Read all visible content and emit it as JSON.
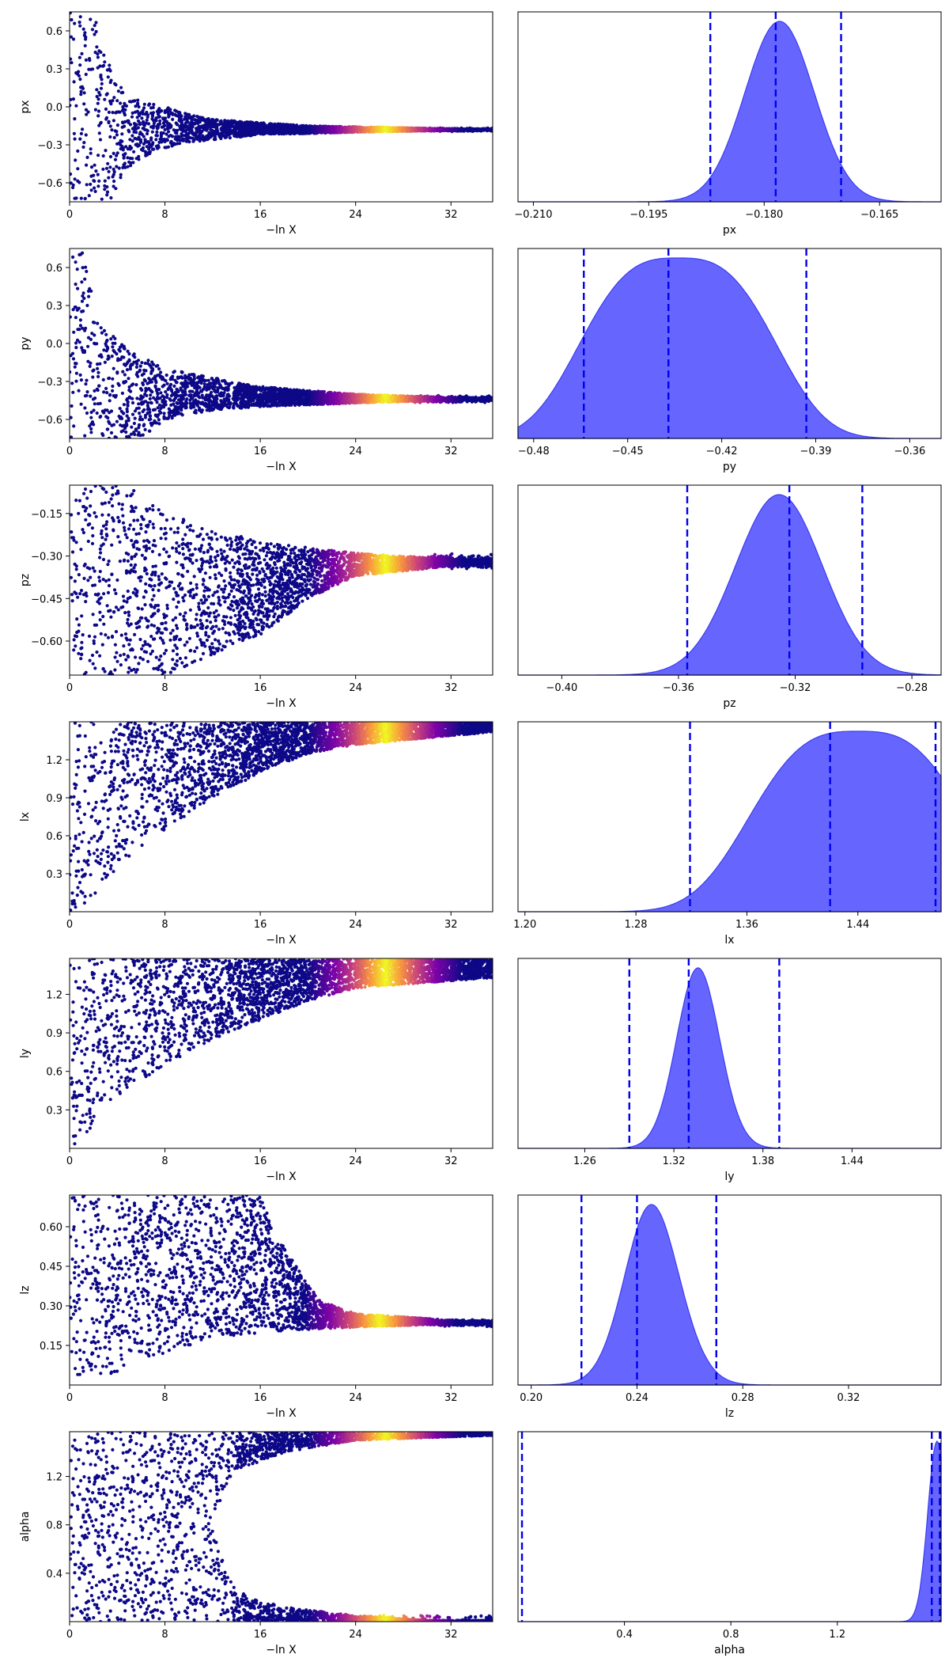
{
  "figure": {
    "layout": "7 rows x 2 columns: trace plots (left) and marginal posterior densities (right)"
  },
  "colors": {
    "points_low": "#0d0887",
    "points_mid": "#cc4778",
    "points_high": "#f0f921",
    "kde_fill": "#5a5aff",
    "kde_line": "#3b3bf0",
    "quantile_line": "#0000ee"
  },
  "chart_data": [
    {
      "type": "scatter",
      "param": "px",
      "xlabel": "−ln X",
      "ylabel": "px",
      "xlim": [
        0,
        35.5
      ],
      "ylim": [
        -0.75,
        0.75
      ],
      "xticks": [
        0,
        8,
        16,
        24,
        32
      ],
      "xtick_labels": [
        "0",
        "8",
        "16",
        "24",
        "32"
      ],
      "yticks": [
        0.6,
        0.3,
        0.0,
        -0.3,
        -0.6
      ],
      "ytick_labels": [
        "0.6",
        "0.3",
        "0.0",
        "−0.3",
        "−0.6"
      ],
      "spread_start": 0.75,
      "converge_value": -0.18,
      "spread_end": 0.005,
      "upper_curve": [
        [
          0,
          0.75
        ],
        [
          2,
          0.75
        ],
        [
          3,
          0.42
        ],
        [
          4,
          0.2
        ],
        [
          5,
          0.07
        ],
        [
          8,
          0.0
        ],
        [
          12,
          -0.1
        ],
        [
          20,
          -0.15
        ],
        [
          35.5,
          -0.18
        ]
      ],
      "lower_curve": [
        [
          0,
          -0.75
        ],
        [
          3.5,
          -0.75
        ],
        [
          5,
          -0.5
        ],
        [
          7,
          -0.35
        ],
        [
          10,
          -0.28
        ],
        [
          16,
          -0.22
        ],
        [
          24,
          -0.2
        ],
        [
          35.5,
          -0.18
        ]
      ],
      "color_peak_x": 26.5
    },
    {
      "type": "kde",
      "param": "px",
      "xlabel": "px",
      "xlim": [
        -0.212,
        -0.157
      ],
      "xticks": [
        -0.21,
        -0.195,
        -0.18,
        -0.165
      ],
      "xtick_labels": [
        "−0.210",
        "−0.195",
        "−0.180",
        "−0.165"
      ],
      "mean": -0.178,
      "std": 0.0045,
      "skew": 0,
      "quantiles": [
        -0.187,
        -0.1785,
        -0.17
      ]
    },
    {
      "type": "scatter",
      "param": "py",
      "xlabel": "−ln X",
      "ylabel": "py",
      "xlim": [
        0,
        35.5
      ],
      "ylim": [
        -0.75,
        0.75
      ],
      "xticks": [
        0,
        8,
        16,
        24,
        32
      ],
      "xtick_labels": [
        "0",
        "8",
        "16",
        "24",
        "32"
      ],
      "yticks": [
        0.6,
        0.3,
        0.0,
        -0.3,
        -0.6
      ],
      "ytick_labels": [
        "0.6",
        "0.3",
        "0.0",
        "−0.3",
        "−0.6"
      ],
      "converge_value": -0.44,
      "spread_end": 0.01,
      "upper_curve": [
        [
          0,
          0.75
        ],
        [
          1,
          0.75
        ],
        [
          2,
          0.35
        ],
        [
          3,
          0.12
        ],
        [
          5,
          -0.05
        ],
        [
          8,
          -0.2
        ],
        [
          16,
          -0.34
        ],
        [
          24,
          -0.4
        ],
        [
          35.5,
          -0.44
        ]
      ],
      "lower_curve": [
        [
          0,
          -0.75
        ],
        [
          6,
          -0.75
        ],
        [
          8,
          -0.6
        ],
        [
          12,
          -0.53
        ],
        [
          16,
          -0.5
        ],
        [
          24,
          -0.47
        ],
        [
          35.5,
          -0.44
        ]
      ],
      "color_peak_x": 26.5
    },
    {
      "type": "kde",
      "param": "py",
      "xlabel": "py",
      "xlim": [
        -0.485,
        -0.35
      ],
      "xticks": [
        -0.48,
        -0.45,
        -0.42,
        -0.39,
        -0.36
      ],
      "xtick_labels": [
        "−0.48",
        "−0.45",
        "−0.42",
        "−0.39",
        "−0.36"
      ],
      "mean": -0.434,
      "std": 0.018,
      "skew": 0,
      "flat_top": true,
      "quantiles": [
        -0.464,
        -0.437,
        -0.393
      ]
    },
    {
      "type": "scatter",
      "param": "pz",
      "xlabel": "−ln X",
      "ylabel": "pz",
      "xlim": [
        0,
        35.5
      ],
      "ylim": [
        -0.72,
        -0.05
      ],
      "xticks": [
        0,
        8,
        16,
        24,
        32
      ],
      "xtick_labels": [
        "0",
        "8",
        "16",
        "24",
        "32"
      ],
      "yticks": [
        -0.15,
        -0.3,
        -0.45,
        -0.6
      ],
      "ytick_labels": [
        "−0.15",
        "−0.30",
        "−0.45",
        "−0.60"
      ],
      "converge_value": -0.32,
      "spread_end": 0.01,
      "upper_curve": [
        [
          0,
          -0.05
        ],
        [
          5,
          -0.05
        ],
        [
          6,
          -0.1
        ],
        [
          10,
          -0.18
        ],
        [
          16,
          -0.25
        ],
        [
          24,
          -0.29
        ],
        [
          35.5,
          -0.32
        ]
      ],
      "lower_curve": [
        [
          0,
          -0.72
        ],
        [
          8,
          -0.72
        ],
        [
          12,
          -0.65
        ],
        [
          16,
          -0.58
        ],
        [
          20,
          -0.45
        ],
        [
          24,
          -0.37
        ],
        [
          35.5,
          -0.32
        ]
      ],
      "color_peak_x": 26.5
    },
    {
      "type": "kde",
      "param": "pz",
      "xlabel": "pz",
      "xlim": [
        -0.415,
        -0.27
      ],
      "xticks": [
        -0.4,
        -0.36,
        -0.32,
        -0.28
      ],
      "xtick_labels": [
        "−0.40",
        "−0.36",
        "−0.32",
        "−0.28"
      ],
      "mean": -0.32,
      "std": 0.016,
      "skew": -0.5,
      "quantiles": [
        -0.357,
        -0.322,
        -0.297
      ]
    },
    {
      "type": "scatter",
      "param": "lx",
      "xlabel": "−ln X",
      "ylabel": "lx",
      "xlim": [
        0,
        35.5
      ],
      "ylim": [
        0,
        1.5
      ],
      "xticks": [
        0,
        8,
        16,
        24,
        32
      ],
      "xtick_labels": [
        "0",
        "8",
        "16",
        "24",
        "32"
      ],
      "yticks": [
        1.2,
        0.9,
        0.6,
        0.3
      ],
      "ytick_labels": [
        "1.2",
        "0.9",
        "0.6",
        "0.3"
      ],
      "converge_value": 1.44,
      "spread_end": 0.02,
      "upper_curve": [
        [
          0,
          1.5
        ],
        [
          35.5,
          1.5
        ]
      ],
      "lower_curve": [
        [
          0,
          0.0
        ],
        [
          2,
          0.1
        ],
        [
          4,
          0.35
        ],
        [
          8,
          0.65
        ],
        [
          12,
          0.9
        ],
        [
          16,
          1.1
        ],
        [
          20,
          1.25
        ],
        [
          24,
          1.32
        ],
        [
          35.5,
          1.42
        ]
      ],
      "color_peak_x": 26.5
    },
    {
      "type": "kde",
      "param": "lx",
      "xlabel": "lx",
      "xlim": [
        1.195,
        1.5
      ],
      "xticks": [
        1.2,
        1.28,
        1.36,
        1.44
      ],
      "xtick_labels": [
        "1.20",
        "1.28",
        "1.36",
        "1.44"
      ],
      "mean": 1.44,
      "std": 0.045,
      "skew": -1.2,
      "flat_top": true,
      "truncate_right": 1.5,
      "quantiles": [
        1.319,
        1.42,
        1.496
      ]
    },
    {
      "type": "scatter",
      "param": "ly",
      "xlabel": "−ln X",
      "ylabel": "ly",
      "xlim": [
        0,
        35.5
      ],
      "ylim": [
        0,
        1.48
      ],
      "xticks": [
        0,
        8,
        16,
        24,
        32
      ],
      "xtick_labels": [
        "0",
        "8",
        "16",
        "24",
        "32"
      ],
      "yticks": [
        1.2,
        0.9,
        0.6,
        0.3
      ],
      "ytick_labels": [
        "1.2",
        "0.9",
        "0.6",
        "0.3"
      ],
      "converge_value": 1.33,
      "spread_end": 0.01,
      "upper_curve": [
        [
          0,
          1.48
        ],
        [
          35.5,
          1.48
        ]
      ],
      "lower_curve": [
        [
          0,
          0.0
        ],
        [
          2,
          0.15
        ],
        [
          4,
          0.4
        ],
        [
          8,
          0.65
        ],
        [
          12,
          0.85
        ],
        [
          16,
          1.0
        ],
        [
          20,
          1.15
        ],
        [
          24,
          1.25
        ],
        [
          35.5,
          1.33
        ]
      ],
      "color_peak_x": 26.5
    },
    {
      "type": "kde",
      "param": "ly",
      "xlabel": "ly",
      "xlim": [
        1.215,
        1.5
      ],
      "xticks": [
        1.26,
        1.32,
        1.38,
        1.44
      ],
      "xtick_labels": [
        "1.26",
        "1.32",
        "1.38",
        "1.44"
      ],
      "mean": 1.33,
      "std": 0.016,
      "skew": 0.6,
      "quantiles": [
        1.29,
        1.33,
        1.391
      ]
    },
    {
      "type": "scatter",
      "param": "lz",
      "xlabel": "−ln X",
      "ylabel": "lz",
      "xlim": [
        0,
        35.5
      ],
      "ylim": [
        0,
        0.72
      ],
      "xticks": [
        0,
        8,
        16,
        24,
        32
      ],
      "xtick_labels": [
        "0",
        "8",
        "16",
        "24",
        "32"
      ],
      "yticks": [
        0.6,
        0.45,
        0.3,
        0.15
      ],
      "ytick_labels": [
        "0.60",
        "0.45",
        "0.30",
        "0.15"
      ],
      "converge_value": 0.235,
      "spread_end": 0.005,
      "upper_curve": [
        [
          0,
          0.72
        ],
        [
          16,
          0.72
        ],
        [
          17,
          0.6
        ],
        [
          19,
          0.45
        ],
        [
          21,
          0.32
        ],
        [
          24,
          0.27
        ],
        [
          35.5,
          0.235
        ]
      ],
      "lower_curve": [
        [
          0,
          0.0
        ],
        [
          4,
          0.05
        ],
        [
          8,
          0.12
        ],
        [
          12,
          0.17
        ],
        [
          16,
          0.2
        ],
        [
          24,
          0.22
        ],
        [
          35.5,
          0.235
        ]
      ],
      "color_peak_x": 26.0
    },
    {
      "type": "kde",
      "param": "lz",
      "xlabel": "lz",
      "xlim": [
        0.195,
        0.355
      ],
      "xticks": [
        0.2,
        0.24,
        0.28,
        0.32
      ],
      "xtick_labels": [
        "0.20",
        "0.24",
        "0.28",
        "0.32"
      ],
      "mean": 0.24,
      "std": 0.012,
      "skew": 0.8,
      "quantiles": [
        0.219,
        0.24,
        0.27
      ]
    },
    {
      "type": "scatter",
      "param": "alpha",
      "xlabel": "−ln X",
      "ylabel": "alpha",
      "xlim": [
        0,
        35.5
      ],
      "ylim": [
        0,
        1.57
      ],
      "xticks": [
        0,
        8,
        16,
        24,
        32
      ],
      "xtick_labels": [
        "0",
        "8",
        "16",
        "24",
        "32"
      ],
      "yticks": [
        1.2,
        0.8,
        0.4
      ],
      "ytick_labels": [
        "1.2",
        "0.8",
        "0.4"
      ],
      "bimodal": true,
      "converge_value": 1.55,
      "second_mode": 0.02,
      "upper_curve": [
        [
          0,
          1.57
        ],
        [
          35.5,
          1.57
        ]
      ],
      "lower_curve": [
        [
          0,
          0.0
        ],
        [
          35.5,
          0.0
        ]
      ],
      "gap_edge": [
        [
          12,
          0.8
        ],
        [
          13,
          1.1
        ],
        [
          14,
          1.25
        ],
        [
          18,
          1.4
        ],
        [
          24,
          1.5
        ],
        [
          35.5,
          1.54
        ]
      ],
      "gap_edge_low": [
        [
          12,
          0.8
        ],
        [
          13,
          0.45
        ],
        [
          14,
          0.25
        ],
        [
          18,
          0.12
        ],
        [
          24,
          0.05
        ],
        [
          30,
          0.01
        ]
      ],
      "color_peak_x": 26.5
    },
    {
      "type": "kde",
      "param": "alpha",
      "xlabel": "alpha",
      "xlim": [
        0.0,
        1.59
      ],
      "xticks": [
        0.4,
        0.8,
        1.2
      ],
      "xtick_labels": [
        "0.4",
        "0.8",
        "1.2"
      ],
      "mean": 1.575,
      "std": 0.035,
      "skew": 0,
      "truncate_right": 1.59,
      "quantiles": [
        0.015,
        1.555,
        1.585
      ]
    }
  ]
}
